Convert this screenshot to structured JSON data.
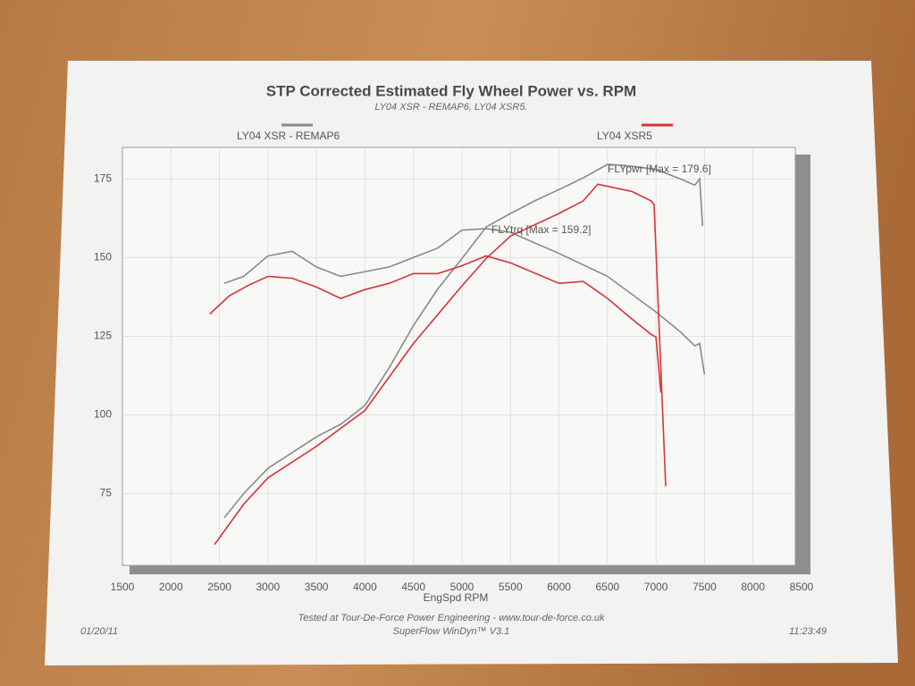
{
  "chart_data": {
    "type": "line",
    "title": "STP Corrected Estimated Fly Wheel Power vs. RPM",
    "subtitle": "LY04 XSR - REMAP6, LY04 XSR5.",
    "x_label": "EngSpd RPM",
    "xlim": [
      1500,
      8500
    ],
    "xticks": [
      1500,
      2000,
      2500,
      3000,
      3500,
      4000,
      4500,
      5000,
      5500,
      6000,
      6500,
      7000,
      7500,
      8000,
      8500
    ],
    "ylim": [
      53,
      185
    ],
    "yticks": [
      75,
      100,
      125,
      150,
      175
    ],
    "grid": true,
    "series": [
      {
        "name": "LY04 XSR - REMAP6",
        "color": "#8a8a8a",
        "power": {
          "x": [
            2550,
            2750,
            3000,
            3250,
            3500,
            3750,
            4000,
            4250,
            4500,
            4750,
            5000,
            5250,
            5500,
            5750,
            6000,
            6250,
            6500,
            6750,
            7000,
            7250,
            7400,
            7450,
            7480
          ],
          "values": [
            67.3,
            75,
            83,
            88,
            93,
            97,
            103,
            115,
            128.4,
            140,
            149.7,
            159.7,
            164,
            168,
            171.6,
            175.3,
            179.6,
            179,
            178,
            175,
            173,
            175,
            160
          ]
        },
        "torque": {
          "x": [
            2550,
            2750,
            3000,
            3250,
            3500,
            3750,
            4000,
            4250,
            4500,
            4750,
            5000,
            5250,
            5500,
            6000,
            6500,
            7000,
            7250,
            7400,
            7450,
            7500
          ],
          "values": [
            141.8,
            144,
            150.5,
            152,
            147,
            144,
            145.5,
            147,
            150,
            153,
            158.7,
            159.2,
            158,
            151.3,
            144,
            132.7,
            126.4,
            121.9,
            122.7,
            112.8
          ]
        }
      },
      {
        "name": "LY04 XSR5",
        "color": "#d8343a",
        "power": {
          "x": [
            2450,
            2750,
            3000,
            3500,
            4000,
            4500,
            5000,
            5250,
            5500,
            6000,
            6250,
            6400,
            6750,
            6950,
            6980,
            7100
          ],
          "values": [
            58.8,
            71.6,
            80,
            90,
            101.4,
            122.7,
            141,
            149.7,
            156.8,
            164,
            168,
            173.3,
            171,
            168,
            166.8,
            77.3
          ]
        },
        "torque": {
          "x": [
            2400,
            2600,
            2800,
            3000,
            3250,
            3500,
            3750,
            4000,
            4250,
            4500,
            4750,
            5000,
            5250,
            5500,
            6000,
            6250,
            6500,
            6750,
            6950,
            7000,
            7050
          ],
          "values": [
            132,
            137.8,
            141.2,
            144,
            143.4,
            140.6,
            137,
            139.8,
            141.8,
            144.9,
            144.9,
            147.4,
            150.5,
            148.3,
            141.8,
            142.4,
            137,
            130.5,
            125.6,
            124.7,
            107.1
          ]
        }
      }
    ],
    "annotations": [
      "FLYpwr [Max = 179.6]",
      "FLYtrq [Max = 159.2]"
    ],
    "footer": {
      "credit": "Tested at Tour-De-Force Power Engineering - www.tour-de-force.co.uk",
      "software": "SuperFlow WinDyn™ V3.1",
      "date": "01/20/11",
      "time": "11:23:49"
    }
  }
}
